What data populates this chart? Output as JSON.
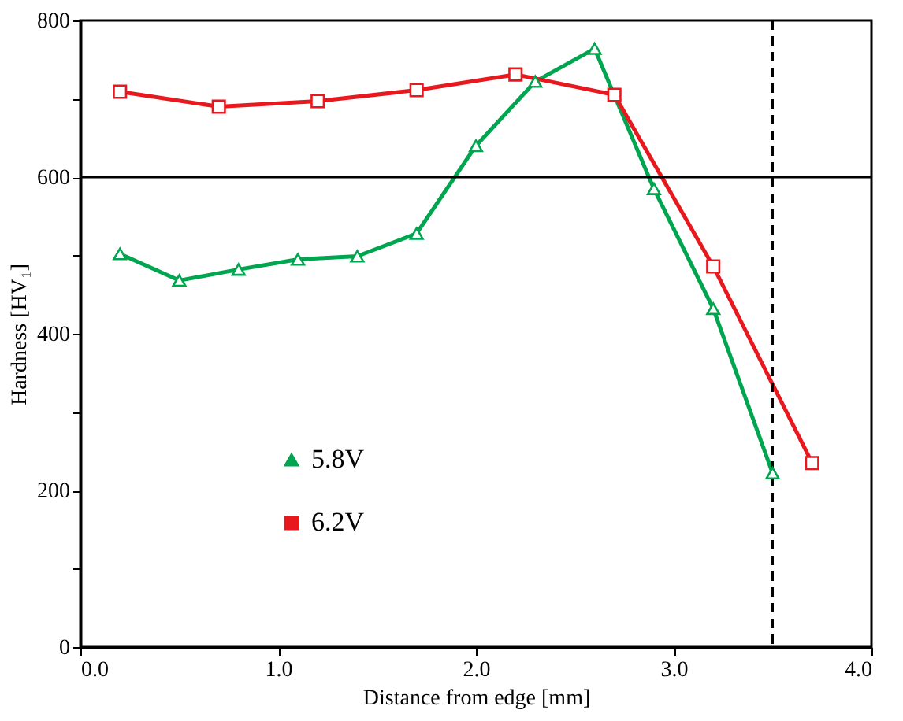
{
  "chart_data": {
    "type": "line",
    "xlabel": "Distance from edge [mm]",
    "ylabel": "Hardness [HV₁]",
    "xlim": [
      0,
      4
    ],
    "xticks": [
      {
        "value": 0,
        "label": "0.0"
      },
      {
        "value": 1,
        "label": "1.0"
      },
      {
        "value": 2,
        "label": "2.0"
      },
      {
        "value": 3,
        "label": "3.0"
      },
      {
        "value": 4,
        "label": "4.0"
      }
    ],
    "ylim": [
      0,
      800
    ],
    "yticks": [
      0,
      {
        "value": 100,
        "label": null
      },
      200,
      {
        "value": 300,
        "label": null
      },
      400,
      {
        "value": 500,
        "label": null
      },
      600,
      {
        "value": 700,
        "label": null
      },
      800
    ],
    "series": [
      {
        "name": "5.8V",
        "color": "#00a550",
        "marker": "triangle",
        "x": [
          0.2,
          0.5,
          0.8,
          1.1,
          1.4,
          1.7,
          2.0,
          2.3,
          2.6,
          2.9,
          3.2,
          3.5
        ],
        "values": [
          502,
          468,
          482,
          495,
          499,
          528,
          640,
          722,
          764,
          585,
          432,
          222
        ]
      },
      {
        "name": "6.2V",
        "color": "#e8191e",
        "marker": "square",
        "x": [
          0.2,
          0.7,
          1.2,
          1.7,
          2.2,
          2.7,
          3.2,
          3.7
        ],
        "values": [
          709,
          690,
          697,
          711,
          731,
          705,
          486,
          235
        ]
      }
    ],
    "ref_lines": [
      {
        "axis": "y",
        "value": 600,
        "color": "#000000",
        "line_style": "solid"
      },
      {
        "axis": "x",
        "value": 3.5,
        "color": "#000000",
        "line_style": "dashed"
      }
    ],
    "grid": false,
    "legend": "bottom left",
    "line_style": "solid"
  }
}
